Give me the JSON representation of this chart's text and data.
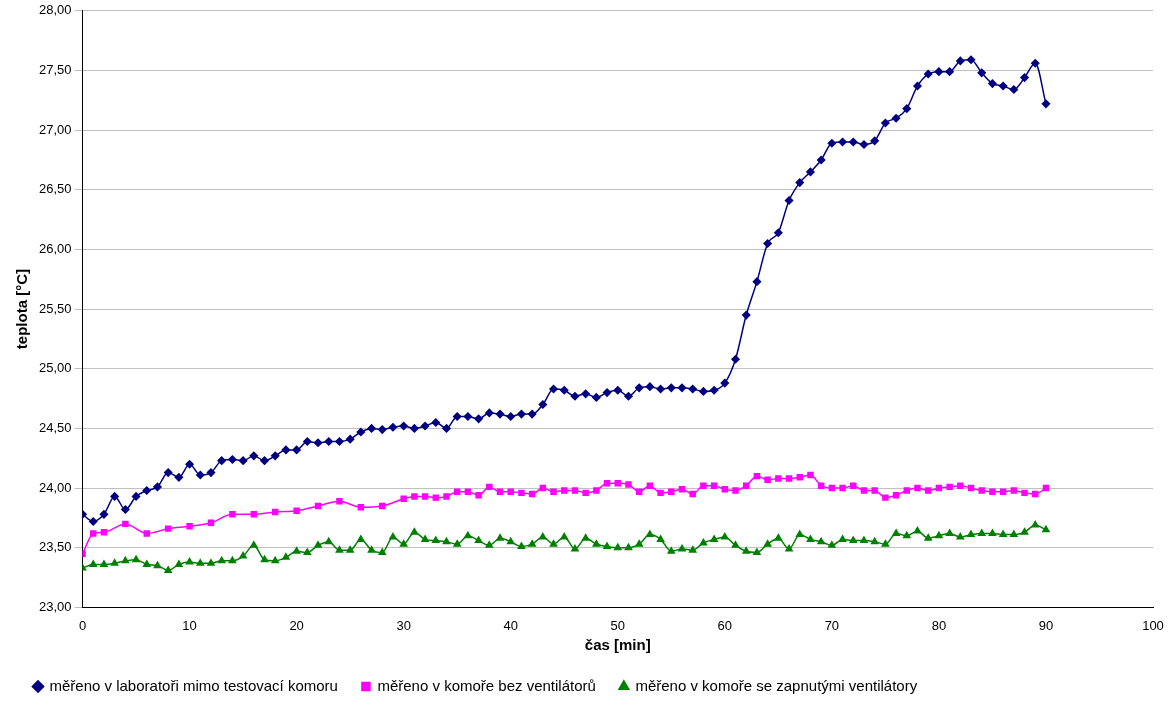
{
  "chart_data": {
    "type": "line",
    "xlabel": "čas [min]",
    "ylabel": "teplota [°C]",
    "xlim": [
      0,
      100
    ],
    "xticks": [
      0,
      10,
      20,
      30,
      40,
      50,
      60,
      70,
      80,
      90,
      100
    ],
    "ylim": [
      23,
      28
    ],
    "yticks": [
      {
        "value": 23,
        "label": "23,00"
      },
      {
        "value": 23.5,
        "label": "23,50"
      },
      {
        "value": 24,
        "label": "24,00"
      },
      {
        "value": 24.5,
        "label": "24,50"
      },
      {
        "value": 25,
        "label": "25,00"
      },
      {
        "value": 25.5,
        "label": "25,50"
      },
      {
        "value": 26,
        "label": "26,00"
      },
      {
        "value": 26.5,
        "label": "26,50"
      },
      {
        "value": 27,
        "label": "27,00"
      },
      {
        "value": 27.5,
        "label": "27,50"
      },
      {
        "value": 28,
        "label": "28,00"
      }
    ],
    "grid": "y",
    "legend": "bottom",
    "series": [
      {
        "name": "měřeno v laboratoři mimo testovací komoru",
        "color": "#000080",
        "marker": "diamond",
        "x": [
          0,
          1,
          2,
          3,
          4,
          5,
          6,
          7,
          8,
          9,
          10,
          11,
          12,
          13,
          14,
          15,
          16,
          17,
          18,
          19,
          20,
          21,
          22,
          23,
          24,
          25,
          26,
          27,
          28,
          29,
          30,
          31,
          32,
          33,
          34,
          35,
          36,
          37,
          38,
          39,
          40,
          41,
          42,
          43,
          44,
          45,
          46,
          47,
          48,
          49,
          50,
          51,
          52,
          53,
          54,
          55,
          56,
          57,
          58,
          59,
          60,
          61,
          62,
          63,
          64,
          65,
          66,
          67,
          68,
          69,
          70,
          71,
          72,
          73,
          74,
          75,
          76,
          77,
          78,
          79,
          80,
          81,
          82,
          83,
          84,
          85,
          86,
          87,
          88,
          89,
          90
        ],
        "values": [
          23.78,
          23.72,
          23.78,
          23.93,
          23.82,
          23.93,
          23.98,
          24.01,
          24.13,
          24.09,
          24.2,
          24.11,
          24.13,
          24.23,
          24.24,
          24.23,
          24.27,
          24.23,
          24.27,
          24.32,
          24.32,
          24.39,
          24.38,
          24.39,
          24.39,
          24.41,
          24.47,
          24.5,
          24.49,
          24.51,
          24.52,
          24.5,
          24.52,
          24.55,
          24.5,
          24.6,
          24.6,
          24.58,
          24.63,
          24.62,
          24.6,
          24.62,
          24.62,
          24.7,
          24.83,
          24.82,
          24.77,
          24.79,
          24.76,
          24.8,
          24.82,
          24.77,
          24.84,
          24.85,
          24.83,
          24.84,
          24.84,
          24.83,
          24.81,
          24.82,
          24.88,
          25.08,
          25.45,
          25.73,
          26.05,
          26.14,
          26.41,
          26.56,
          26.65,
          26.75,
          26.89,
          26.9,
          26.9,
          26.88,
          26.91,
          27.06,
          27.1,
          27.18,
          27.37,
          27.47,
          27.49,
          27.49,
          27.58,
          27.59,
          27.48,
          27.39,
          27.37,
          27.34,
          27.44,
          27.56,
          27.22
        ]
      },
      {
        "name": "měřeno v komoře bez ventilátorů",
        "color": "#ff00ff",
        "marker": "square",
        "x": [
          0,
          1,
          2,
          4,
          6,
          8,
          10,
          12,
          14,
          16,
          18,
          20,
          22,
          24,
          26,
          28,
          30,
          31,
          32,
          33,
          34,
          35,
          36,
          37,
          38,
          39,
          40,
          41,
          42,
          43,
          44,
          45,
          46,
          47,
          48,
          49,
          50,
          51,
          52,
          53,
          54,
          55,
          56,
          57,
          58,
          59,
          60,
          61,
          62,
          63,
          64,
          65,
          66,
          67,
          68,
          69,
          70,
          71,
          72,
          73,
          74,
          75,
          76,
          77,
          78,
          79,
          80,
          81,
          82,
          83,
          84,
          85,
          86,
          87,
          88,
          89,
          90
        ],
        "values": [
          23.45,
          23.62,
          23.63,
          23.7,
          23.62,
          23.66,
          23.68,
          23.71,
          23.78,
          23.78,
          23.8,
          23.81,
          23.85,
          23.89,
          23.84,
          23.85,
          23.91,
          23.93,
          23.93,
          23.92,
          23.93,
          23.97,
          23.97,
          23.94,
          24.01,
          23.97,
          23.97,
          23.96,
          23.95,
          24.0,
          23.97,
          23.98,
          23.98,
          23.96,
          23.98,
          24.04,
          24.04,
          24.03,
          23.97,
          24.02,
          23.96,
          23.97,
          23.99,
          23.95,
          24.02,
          24.02,
          23.99,
          23.98,
          24.02,
          24.1,
          24.07,
          24.08,
          24.08,
          24.09,
          24.11,
          24.02,
          24.0,
          24.0,
          24.02,
          23.98,
          23.98,
          23.92,
          23.94,
          23.98,
          24.0,
          23.98,
          24.0,
          24.01,
          24.02,
          24.0,
          23.98,
          23.97,
          23.97,
          23.98,
          23.96,
          23.95,
          24.0
        ]
      },
      {
        "name": "měřeno v komoře se zapnutými ventilátory",
        "color": "#008000",
        "marker": "triangle",
        "x": [
          0,
          1,
          2,
          3,
          4,
          5,
          6,
          7,
          8,
          9,
          10,
          11,
          12,
          13,
          14,
          15,
          16,
          17,
          18,
          19,
          20,
          21,
          22,
          23,
          24,
          25,
          26,
          27,
          28,
          29,
          30,
          31,
          32,
          33,
          34,
          35,
          36,
          37,
          38,
          39,
          40,
          41,
          42,
          43,
          44,
          45,
          46,
          47,
          48,
          49,
          50,
          51,
          52,
          53,
          54,
          55,
          56,
          57,
          58,
          59,
          60,
          61,
          62,
          63,
          64,
          65,
          66,
          67,
          68,
          69,
          70,
          71,
          72,
          73,
          74,
          75,
          76,
          77,
          78,
          79,
          80,
          81,
          82,
          83,
          84,
          85,
          86,
          87,
          88,
          89,
          90
        ],
        "values": [
          23.33,
          23.36,
          23.36,
          23.37,
          23.39,
          23.4,
          23.36,
          23.35,
          23.31,
          23.36,
          23.38,
          23.37,
          23.37,
          23.39,
          23.39,
          23.43,
          23.52,
          23.4,
          23.39,
          23.42,
          23.47,
          23.46,
          23.52,
          23.55,
          23.48,
          23.48,
          23.57,
          23.48,
          23.46,
          23.59,
          23.53,
          23.63,
          23.57,
          23.56,
          23.55,
          23.53,
          23.6,
          23.56,
          23.52,
          23.58,
          23.55,
          23.51,
          23.53,
          23.59,
          23.53,
          23.59,
          23.49,
          23.58,
          23.53,
          23.51,
          23.5,
          23.5,
          23.53,
          23.61,
          23.57,
          23.47,
          23.49,
          23.48,
          23.54,
          23.57,
          23.59,
          23.52,
          23.47,
          23.46,
          23.53,
          23.58,
          23.49,
          23.61,
          23.57,
          23.55,
          23.52,
          23.57,
          23.56,
          23.56,
          23.55,
          23.53,
          23.62,
          23.6,
          23.64,
          23.58,
          23.6,
          23.62,
          23.59,
          23.61,
          23.62,
          23.62,
          23.61,
          23.61,
          23.63,
          23.69,
          23.65
        ]
      }
    ]
  }
}
